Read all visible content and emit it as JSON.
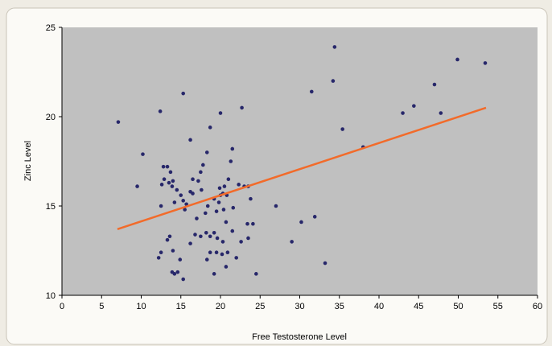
{
  "chart_data": {
    "type": "scatter",
    "x_label": "Free Testosterone Level",
    "y_label": "Zinc Level",
    "xlim": [
      0,
      60
    ],
    "xticks": [
      0,
      5,
      10,
      15,
      20,
      25,
      30,
      35,
      40,
      45,
      50,
      55,
      60
    ],
    "ylim": [
      10,
      25
    ],
    "yticks": [
      10,
      15,
      20,
      25
    ],
    "grid": false,
    "color": "#27276a",
    "x": [
      7.1,
      9.5,
      10.2,
      12.4,
      15.3,
      12.2,
      12.5,
      13.3,
      12.8,
      13.3,
      13.7,
      12.9,
      13.5,
      14.0,
      12.6,
      13.9,
      14.5,
      15.0,
      12.5,
      14.2,
      15.3,
      15.7,
      15.5,
      16.2,
      16.5,
      16.5,
      17.2,
      16.2,
      17.5,
      17.8,
      18.3,
      18.7,
      17.6,
      18.4,
      18.1,
      17.0,
      16.8,
      17.5,
      18.2,
      18.7,
      19.2,
      19.5,
      19.8,
      19.2,
      20.0,
      20.3,
      19.9,
      20.5,
      20.0,
      21.3,
      21.5,
      21.0,
      20.8,
      21.6,
      21.5,
      20.4,
      20.7,
      19.6,
      20.3,
      20.9,
      20.2,
      19.5,
      18.7,
      18.3,
      19.2,
      15.3,
      14.2,
      13.9,
      14.6,
      13.6,
      14.0,
      14.9,
      16.2,
      20.7,
      22.3,
      22.7,
      23.0,
      23.5,
      23.8,
      22.0,
      22.6,
      23.5,
      23.4,
      24.1,
      24.5,
      27.0,
      29.0,
      30.2,
      31.5,
      31.9,
      33.2,
      34.2,
      34.4,
      35.4,
      38.0,
      43.0,
      44.4,
      47.0,
      47.8,
      49.9,
      53.4
    ],
    "values": [
      19.7,
      16.1,
      17.9,
      20.3,
      21.3,
      12.1,
      12.4,
      13.1,
      17.2,
      17.2,
      16.9,
      16.5,
      16.3,
      16.4,
      16.2,
      16.1,
      15.9,
      15.6,
      15.0,
      15.2,
      15.3,
      15.1,
      14.8,
      15.8,
      15.7,
      16.5,
      16.4,
      18.7,
      16.9,
      17.3,
      18.0,
      19.4,
      15.9,
      15.0,
      14.6,
      14.3,
      13.4,
      13.3,
      13.5,
      13.3,
      13.5,
      14.7,
      15.2,
      15.4,
      15.6,
      15.7,
      16.0,
      16.1,
      20.2,
      17.5,
      18.2,
      16.5,
      15.6,
      14.9,
      13.6,
      14.8,
      14.1,
      13.2,
      13.0,
      12.4,
      12.3,
      12.4,
      12.4,
      12.0,
      11.2,
      10.9,
      11.2,
      11.3,
      11.3,
      13.3,
      12.5,
      12.0,
      12.9,
      11.6,
      16.2,
      20.5,
      16.1,
      16.1,
      15.4,
      12.1,
      13.0,
      13.2,
      14.0,
      14.0,
      11.2,
      15.0,
      13.0,
      14.1,
      21.4,
      14.4,
      11.8,
      22.0,
      23.9,
      19.3,
      18.3,
      20.2,
      20.6,
      21.8,
      20.2,
      23.2,
      23.0
    ],
    "trendline": {
      "x": [
        7,
        53.5
      ],
      "values": [
        13.7,
        20.5
      ],
      "color": "#f26b2a"
    }
  }
}
